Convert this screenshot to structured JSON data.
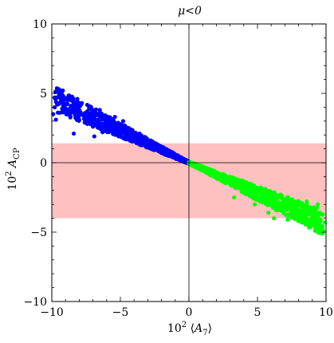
{
  "chart_data": {
    "type": "scatter",
    "title": "μ<0",
    "xlabel": "10² ⟨A₇⟩",
    "ylabel": "10² A_CP",
    "xlim": [
      -10,
      10
    ],
    "ylim": [
      -10,
      10
    ],
    "xticks": [
      -10,
      -5,
      0,
      5,
      10
    ],
    "yticks": [
      -10,
      -5,
      0,
      5,
      10
    ],
    "xtick_labels": [
      "−10",
      "−5",
      "0",
      "5",
      "10"
    ],
    "ytick_labels": [
      "−10",
      "−5",
      "0",
      "5",
      "10"
    ],
    "grid": false,
    "band": {
      "y_from": -4,
      "y_to": 1.4,
      "color": "#ffc0c0"
    },
    "series": [
      {
        "color": "#0000ff",
        "x_range": [
          -9.9,
          0.1
        ],
        "points": [
          [
            -9.5,
            5.3
          ],
          [
            -9.2,
            5.2
          ],
          [
            -9.8,
            4.7
          ],
          [
            -9.6,
            4.3
          ],
          [
            -8.8,
            4.6
          ],
          [
            -9.9,
            3.5
          ],
          [
            -9.7,
            3.1
          ],
          [
            -9.0,
            3.9
          ],
          [
            -8.6,
            4.1
          ],
          [
            -8.2,
            3.7
          ],
          [
            -7.9,
            4.2
          ],
          [
            -7.5,
            3.6
          ],
          [
            -7.2,
            3.9
          ],
          [
            -6.8,
            3.4
          ],
          [
            -6.5,
            3.8
          ],
          [
            -6.1,
            2.9
          ],
          [
            -5.8,
            3.2
          ],
          [
            -5.4,
            3.3
          ],
          [
            -5.1,
            2.7
          ],
          [
            -4.8,
            3.0
          ],
          [
            -8.4,
            2.1
          ],
          [
            -7.0,
            2.6
          ],
          [
            -6.3,
            2.2
          ],
          [
            -5.0,
            2.0
          ],
          [
            -4.4,
            2.5
          ],
          [
            -4.0,
            1.7
          ],
          [
            -3.6,
            2.1
          ],
          [
            -3.2,
            1.5
          ],
          [
            -2.8,
            1.6
          ],
          [
            -2.4,
            1.1
          ],
          [
            -2.0,
            1.0
          ],
          [
            -1.6,
            0.7
          ],
          [
            -1.2,
            0.5
          ],
          [
            -0.8,
            0.35
          ],
          [
            -0.4,
            0.2
          ],
          [
            -0.1,
            0.05
          ],
          [
            -7.6,
            2.9
          ],
          [
            -6.9,
            1.9
          ],
          [
            -5.6,
            2.4
          ],
          [
            -4.6,
            1.8
          ]
        ]
      },
      {
        "color": "#00ff00",
        "x_range": [
          -0.1,
          9.9
        ],
        "points": [
          [
            0.1,
            -0.05
          ],
          [
            0.5,
            -0.2
          ],
          [
            1.0,
            -0.4
          ],
          [
            1.5,
            -0.6
          ],
          [
            2.0,
            -0.9
          ],
          [
            2.5,
            -1.1
          ],
          [
            3.0,
            -1.3
          ],
          [
            3.5,
            -1.6
          ],
          [
            4.0,
            -1.8
          ],
          [
            4.5,
            -2.0
          ],
          [
            5.0,
            -2.2
          ],
          [
            5.5,
            -2.4
          ],
          [
            6.0,
            -2.7
          ],
          [
            6.5,
            -2.9
          ],
          [
            7.0,
            -3.1
          ],
          [
            7.5,
            -3.4
          ],
          [
            8.0,
            -3.6
          ],
          [
            8.5,
            -3.8
          ],
          [
            9.0,
            -4.0
          ],
          [
            9.9,
            -4.3
          ],
          [
            6.2,
            -4.0
          ],
          [
            7.2,
            -4.1
          ],
          [
            5.8,
            -3.6
          ],
          [
            8.6,
            -2.8
          ],
          [
            9.4,
            -3.0
          ],
          [
            4.8,
            -3.0
          ],
          [
            3.3,
            -2.5
          ],
          [
            8.3,
            -4.0
          ],
          [
            6.8,
            -2.4
          ],
          [
            7.8,
            -2.9
          ]
        ]
      }
    ]
  }
}
